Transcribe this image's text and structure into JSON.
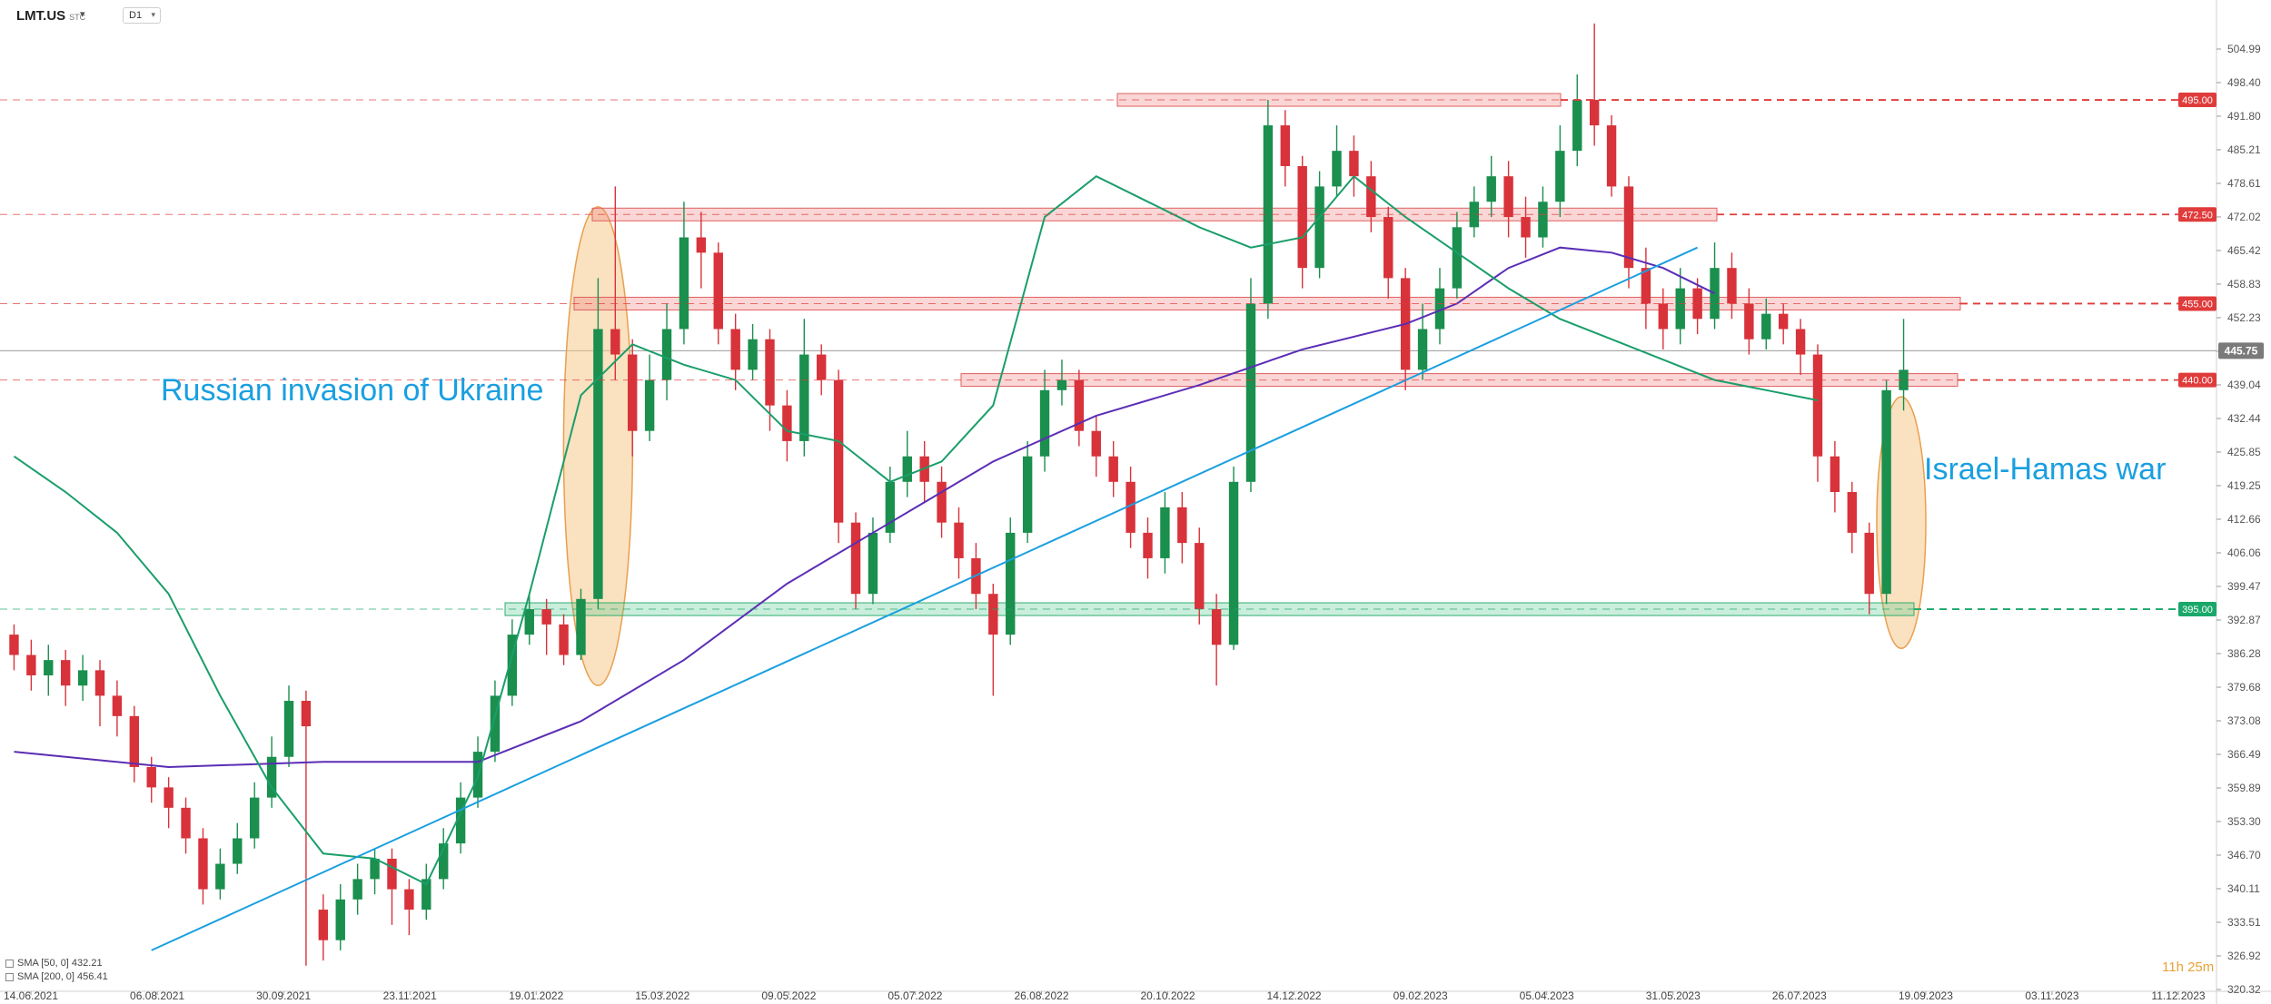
{
  "header": {
    "symbol": "LMT.US",
    "symbol_suffix": "STC",
    "timeframe": "D1"
  },
  "indicators": [
    {
      "label": "SMA [50, 0] 432.21",
      "color": "#1a9e6a"
    },
    {
      "label": "SMA [200, 0] 456.41",
      "color": "#5b2db5"
    }
  ],
  "timer": "11h 25m",
  "chart_data": {
    "type": "candlestick",
    "x_ticks": [
      "14.06.2021",
      "06.08.2021",
      "30.09.2021",
      "23.11.2021",
      "19.01.2022",
      "15.03.2022",
      "09.05.2022",
      "05.07.2022",
      "26.08.2022",
      "20.10.2022",
      "14.12.2022",
      "09.02.2023",
      "05.04.2023",
      "31.05.2023",
      "26.07.2023",
      "19.09.2023",
      "03.11.2023",
      "11.12.2023"
    ],
    "y_ticks": [
      504.99,
      498.4,
      491.8,
      485.21,
      478.61,
      472.02,
      465.42,
      458.83,
      452.23,
      445.64,
      439.04,
      432.44,
      425.85,
      419.25,
      412.66,
      406.06,
      399.47,
      392.87,
      386.28,
      379.68,
      373.08,
      366.49,
      359.89,
      353.3,
      346.7,
      340.11,
      333.51,
      326.92,
      320.32
    ],
    "ylim": [
      320.32,
      504.99
    ],
    "current_price": "445.75",
    "levels": [
      {
        "value": 495.0,
        "label": "495.00",
        "color": "#e03b3b"
      },
      {
        "value": 472.5,
        "label": "472.50",
        "color": "#e03b3b"
      },
      {
        "value": 455.0,
        "label": "455.00",
        "color": "#e03b3b"
      },
      {
        "value": 440.0,
        "label": "440.00",
        "color": "#e03b3b"
      },
      {
        "value": 395.0,
        "label": "395.00",
        "color": "#1aa86a"
      }
    ],
    "annotations": [
      {
        "text": "Russian invasion of Ukraine",
        "color": "#1a9fe0"
      },
      {
        "text": "Israel-Hamas war",
        "color": "#1a9fe0"
      }
    ],
    "sma50_path": [
      [
        0,
        425
      ],
      [
        3,
        418
      ],
      [
        6,
        410
      ],
      [
        9,
        398
      ],
      [
        12,
        378
      ],
      [
        15,
        360
      ],
      [
        18,
        347
      ],
      [
        21,
        346
      ],
      [
        24,
        341
      ],
      [
        27,
        362
      ],
      [
        30,
        398
      ],
      [
        33,
        437
      ],
      [
        36,
        447
      ],
      [
        39,
        443
      ],
      [
        42,
        440
      ],
      [
        45,
        430
      ],
      [
        48,
        428
      ],
      [
        51,
        420
      ],
      [
        54,
        424
      ],
      [
        57,
        435
      ],
      [
        60,
        472
      ],
      [
        63,
        480
      ],
      [
        66,
        475
      ],
      [
        69,
        470
      ],
      [
        72,
        466
      ],
      [
        75,
        468
      ],
      [
        78,
        480
      ],
      [
        81,
        472
      ],
      [
        84,
        465
      ],
      [
        87,
        458
      ],
      [
        90,
        452
      ],
      [
        93,
        448
      ],
      [
        96,
        444
      ],
      [
        99,
        440
      ],
      [
        102,
        438
      ],
      [
        105,
        436
      ]
    ],
    "sma200_path": [
      [
        0,
        367
      ],
      [
        9,
        364
      ],
      [
        18,
        365
      ],
      [
        27,
        365
      ],
      [
        33,
        373
      ],
      [
        39,
        385
      ],
      [
        45,
        400
      ],
      [
        51,
        412
      ],
      [
        57,
        424
      ],
      [
        63,
        433
      ],
      [
        69,
        439
      ],
      [
        75,
        446
      ],
      [
        81,
        451
      ],
      [
        84,
        455
      ],
      [
        87,
        462
      ],
      [
        90,
        466
      ],
      [
        93,
        465
      ],
      [
        96,
        462
      ],
      [
        99,
        457
      ]
    ],
    "trendline": [
      [
        8,
        328
      ],
      [
        98,
        466
      ]
    ],
    "candles": [
      [
        390,
        386,
        392,
        383
      ],
      [
        386,
        382,
        389,
        379
      ],
      [
        382,
        385,
        388,
        378
      ],
      [
        385,
        380,
        387,
        376
      ],
      [
        380,
        383,
        386,
        377
      ],
      [
        383,
        378,
        385,
        372
      ],
      [
        378,
        374,
        381,
        370
      ],
      [
        374,
        364,
        376,
        361
      ],
      [
        364,
        360,
        366,
        357
      ],
      [
        360,
        356,
        362,
        352
      ],
      [
        356,
        350,
        358,
        347
      ],
      [
        350,
        340,
        352,
        337
      ],
      [
        340,
        345,
        348,
        338
      ],
      [
        345,
        350,
        353,
        343
      ],
      [
        350,
        358,
        361,
        348
      ],
      [
        358,
        366,
        370,
        356
      ],
      [
        366,
        377,
        380,
        364
      ],
      [
        377,
        372,
        379,
        325
      ],
      [
        336,
        330,
        339,
        326
      ],
      [
        330,
        338,
        341,
        328
      ],
      [
        338,
        342,
        345,
        335
      ],
      [
        342,
        346,
        348,
        339
      ],
      [
        346,
        340,
        348,
        333
      ],
      [
        340,
        336,
        342,
        331
      ],
      [
        336,
        342,
        345,
        334
      ],
      [
        342,
        349,
        352,
        340
      ],
      [
        349,
        358,
        361,
        347
      ],
      [
        358,
        367,
        370,
        356
      ],
      [
        367,
        378,
        381,
        365
      ],
      [
        378,
        390,
        393,
        376
      ],
      [
        390,
        395,
        398,
        388
      ],
      [
        395,
        392,
        397,
        386
      ],
      [
        392,
        386,
        394,
        384
      ],
      [
        386,
        397,
        399,
        385
      ],
      [
        397,
        450,
        460,
        395
      ],
      [
        450,
        445,
        478,
        440
      ],
      [
        445,
        430,
        448,
        425
      ],
      [
        430,
        440,
        445,
        428
      ],
      [
        440,
        450,
        455,
        436
      ],
      [
        450,
        468,
        475,
        447
      ],
      [
        468,
        465,
        473,
        458
      ],
      [
        465,
        450,
        467,
        447
      ],
      [
        450,
        442,
        453,
        438
      ],
      [
        442,
        448,
        451,
        440
      ],
      [
        448,
        435,
        450,
        430
      ],
      [
        435,
        428,
        438,
        424
      ],
      [
        428,
        445,
        452,
        425
      ],
      [
        445,
        440,
        447,
        437
      ],
      [
        440,
        412,
        442,
        408
      ],
      [
        412,
        398,
        414,
        395
      ],
      [
        398,
        410,
        413,
        396
      ],
      [
        410,
        420,
        423,
        408
      ],
      [
        420,
        425,
        430,
        417
      ],
      [
        425,
        420,
        428,
        416
      ],
      [
        420,
        412,
        423,
        409
      ],
      [
        412,
        405,
        415,
        401
      ],
      [
        405,
        398,
        408,
        395
      ],
      [
        398,
        390,
        400,
        378
      ],
      [
        390,
        410,
        413,
        388
      ],
      [
        410,
        425,
        428,
        408
      ],
      [
        425,
        438,
        442,
        422
      ],
      [
        438,
        440,
        444,
        435
      ],
      [
        440,
        430,
        442,
        427
      ],
      [
        430,
        425,
        433,
        421
      ],
      [
        425,
        420,
        428,
        417
      ],
      [
        420,
        410,
        423,
        407
      ],
      [
        410,
        405,
        413,
        401
      ],
      [
        405,
        415,
        418,
        402
      ],
      [
        415,
        408,
        418,
        404
      ],
      [
        408,
        395,
        411,
        392
      ],
      [
        395,
        388,
        398,
        380
      ],
      [
        388,
        420,
        423,
        387
      ],
      [
        420,
        455,
        460,
        418
      ],
      [
        455,
        490,
        495,
        452
      ],
      [
        490,
        482,
        493,
        478
      ],
      [
        482,
        462,
        484,
        458
      ],
      [
        462,
        478,
        481,
        460
      ],
      [
        478,
        485,
        490,
        476
      ],
      [
        485,
        480,
        488,
        476
      ],
      [
        480,
        472,
        483,
        469
      ],
      [
        472,
        460,
        474,
        456
      ],
      [
        460,
        442,
        462,
        438
      ],
      [
        442,
        450,
        455,
        440
      ],
      [
        450,
        458,
        462,
        447
      ],
      [
        458,
        470,
        473,
        456
      ],
      [
        470,
        475,
        478,
        468
      ],
      [
        475,
        480,
        484,
        472
      ],
      [
        480,
        472,
        483,
        468
      ],
      [
        472,
        468,
        476,
        464
      ],
      [
        468,
        475,
        478,
        466
      ],
      [
        475,
        485,
        490,
        472
      ],
      [
        485,
        495,
        500,
        482
      ],
      [
        495,
        490,
        510,
        486
      ],
      [
        490,
        478,
        492,
        476
      ],
      [
        478,
        462,
        480,
        458
      ],
      [
        462,
        455,
        466,
        450
      ],
      [
        455,
        450,
        458,
        446
      ],
      [
        450,
        458,
        462,
        447
      ],
      [
        458,
        452,
        460,
        449
      ],
      [
        452,
        462,
        467,
        450
      ],
      [
        462,
        455,
        465,
        452
      ],
      [
        455,
        448,
        458,
        445
      ],
      [
        448,
        453,
        456,
        446
      ],
      [
        453,
        450,
        455,
        447
      ],
      [
        450,
        445,
        452,
        441
      ],
      [
        445,
        425,
        447,
        420
      ],
      [
        425,
        418,
        428,
        414
      ],
      [
        418,
        410,
        420,
        406
      ],
      [
        410,
        398,
        412,
        394
      ],
      [
        398,
        438,
        440,
        396
      ],
      [
        438,
        442,
        452,
        434
      ]
    ]
  }
}
